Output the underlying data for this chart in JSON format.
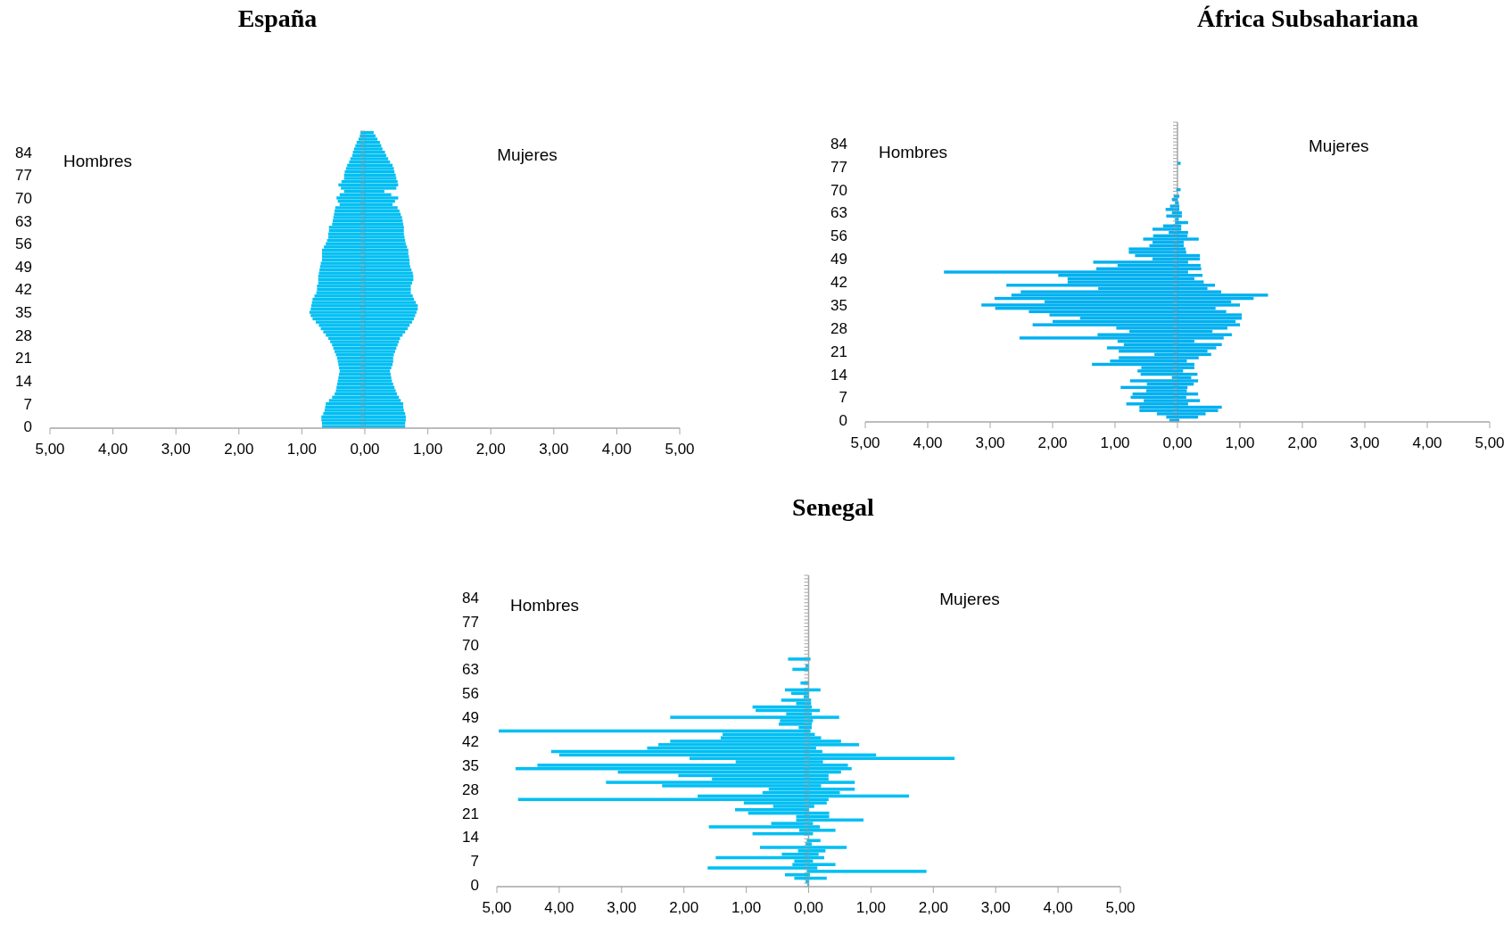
{
  "chart_data": [
    {
      "type": "bar",
      "orientation": "horizontal",
      "stacked": true,
      "title": "España",
      "annotations": [
        "Hombres",
        "Mujeres"
      ],
      "categories": [
        null,
        null,
        null,
        null,
        null,
        null,
        "84",
        null,
        null,
        null,
        null,
        null,
        null,
        "77",
        null,
        null,
        null,
        null,
        null,
        null,
        "70",
        null,
        null,
        null,
        null,
        null,
        null,
        "63",
        null,
        null,
        null,
        null,
        null,
        null,
        "56",
        null,
        null,
        null,
        null,
        null,
        null,
        "49",
        null,
        null,
        null,
        null,
        null,
        null,
        "42",
        null,
        null,
        null,
        null,
        null,
        null,
        "35",
        null,
        null,
        null,
        null,
        null,
        null,
        "28",
        null,
        null,
        null,
        null,
        null,
        null,
        "21",
        null,
        null,
        null,
        null,
        null,
        null,
        "14",
        null,
        null,
        null,
        null,
        null,
        null,
        "7",
        null,
        null,
        null,
        null,
        null,
        null,
        "0"
      ],
      "xlim": [
        -5,
        5
      ],
      "xticks": [
        {
          "value": -5,
          "label": "5,00"
        },
        {
          "value": -4,
          "label": "4,00"
        },
        {
          "value": -3,
          "label": "3,00"
        },
        {
          "value": -2,
          "label": "2,00"
        },
        {
          "value": -1,
          "label": "1,00"
        },
        {
          "value": 0,
          "label": "0,00"
        },
        {
          "value": 1,
          "label": "1,00"
        },
        {
          "value": 2,
          "label": "2,00"
        },
        {
          "value": 3,
          "label": "3,00"
        },
        {
          "value": 4,
          "label": "4,00"
        },
        {
          "value": 5,
          "label": "5,00"
        }
      ],
      "series": [
        {
          "color": "#00bff3",
          "values": [
            -0.07,
            -0.08,
            -0.1,
            -0.13,
            -0.15,
            -0.17,
            -0.19,
            -0.2,
            -0.23,
            -0.25,
            -0.28,
            -0.3,
            -0.32,
            -0.33,
            -0.33,
            -0.37,
            -0.42,
            -0.38,
            -0.33,
            -0.4,
            -0.45,
            -0.43,
            -0.4,
            -0.47,
            -0.48,
            -0.49,
            -0.5,
            -0.51,
            -0.52,
            -0.57,
            -0.57,
            -0.58,
            -0.58,
            -0.6,
            -0.62,
            -0.65,
            -0.68,
            -0.68,
            -0.68,
            -0.68,
            -0.7,
            -0.71,
            -0.72,
            -0.73,
            -0.74,
            -0.74,
            -0.74,
            -0.76,
            -0.76,
            -0.77,
            -0.8,
            -0.83,
            -0.84,
            -0.85,
            -0.86,
            -0.88,
            -0.86,
            -0.83,
            -0.78,
            -0.73,
            -0.7,
            -0.66,
            -0.62,
            -0.58,
            -0.55,
            -0.52,
            -0.5,
            -0.48,
            -0.46,
            -0.44,
            -0.43,
            -0.42,
            -0.41,
            -0.4,
            -0.41,
            -0.42,
            -0.43,
            -0.44,
            -0.45,
            -0.46,
            -0.48,
            -0.52,
            -0.57,
            -0.62,
            -0.63,
            -0.64,
            -0.66,
            -0.69,
            -0.69,
            -0.68,
            -0.68
          ]
        },
        {
          "color": "#00bff3",
          "values": [
            0.14,
            0.17,
            0.2,
            0.24,
            0.26,
            0.28,
            0.32,
            0.34,
            0.37,
            0.4,
            0.44,
            0.46,
            0.47,
            0.49,
            0.5,
            0.52,
            0.53,
            0.5,
            0.31,
            0.42,
            0.53,
            0.48,
            0.44,
            0.52,
            0.55,
            0.57,
            0.59,
            0.6,
            0.61,
            0.62,
            0.62,
            0.62,
            0.63,
            0.64,
            0.65,
            0.67,
            0.69,
            0.69,
            0.7,
            0.71,
            0.71,
            0.72,
            0.74,
            0.76,
            0.77,
            0.77,
            0.75,
            0.73,
            0.73,
            0.73,
            0.76,
            0.78,
            0.81,
            0.84,
            0.84,
            0.82,
            0.8,
            0.78,
            0.75,
            0.71,
            0.68,
            0.64,
            0.6,
            0.56,
            0.54,
            0.52,
            0.5,
            0.48,
            0.46,
            0.45,
            0.45,
            0.44,
            0.42,
            0.4,
            0.41,
            0.42,
            0.43,
            0.45,
            0.47,
            0.49,
            0.51,
            0.54,
            0.57,
            0.61,
            0.61,
            0.62,
            0.64,
            0.65,
            0.65,
            0.64,
            0.64
          ]
        }
      ]
    },
    {
      "type": "bar",
      "orientation": "horizontal",
      "stacked": true,
      "title": "África Subsahariana",
      "annotations": [
        "Hombres",
        "Mujeres"
      ],
      "categories": [
        null,
        null,
        null,
        null,
        null,
        null,
        "84",
        null,
        null,
        null,
        null,
        null,
        null,
        "77",
        null,
        null,
        null,
        null,
        null,
        null,
        "70",
        null,
        null,
        null,
        null,
        null,
        null,
        "63",
        null,
        null,
        null,
        null,
        null,
        null,
        "56",
        null,
        null,
        null,
        null,
        null,
        null,
        "49",
        null,
        null,
        null,
        null,
        null,
        null,
        "42",
        null,
        null,
        null,
        null,
        null,
        null,
        "35",
        null,
        null,
        null,
        null,
        null,
        null,
        "28",
        null,
        null,
        null,
        null,
        null,
        null,
        "21",
        null,
        null,
        null,
        null,
        null,
        null,
        "14",
        null,
        null,
        null,
        null,
        null,
        null,
        "7",
        null,
        null,
        null,
        null,
        null,
        null,
        "0"
      ],
      "xlim": [
        -5,
        5
      ],
      "xticks": [
        {
          "value": -5,
          "label": "5,00"
        },
        {
          "value": -4,
          "label": "4,00"
        },
        {
          "value": -3,
          "label": "3,00"
        },
        {
          "value": -2,
          "label": "2,00"
        },
        {
          "value": -1,
          "label": "1,00"
        },
        {
          "value": 0,
          "label": "0,00"
        },
        {
          "value": 1,
          "label": "1,00"
        },
        {
          "value": 2,
          "label": "2,00"
        },
        {
          "value": 3,
          "label": "3,00"
        },
        {
          "value": 4,
          "label": "4,00"
        },
        {
          "value": 5,
          "label": "5,00"
        }
      ],
      "series": [
        {
          "color": "#00b0f0",
          "values": [
            0,
            0,
            0,
            0,
            0,
            0,
            null,
            0,
            0,
            0,
            0,
            0,
            0,
            0,
            0,
            0,
            0,
            0,
            0,
            null,
            -0.02,
            0,
            -0.06,
            -0.09,
            -0.04,
            -0.12,
            -0.19,
            -0.09,
            -0.18,
            -0.04,
            -0.04,
            -0.23,
            -0.4,
            -0.14,
            -0.39,
            -0.55,
            -0.4,
            -0.45,
            -0.78,
            -0.78,
            -0.68,
            -0.4,
            -1.35,
            -0.96,
            -1.3,
            -3.74,
            -1.91,
            -1.76,
            -1.76,
            -2.74,
            -1.27,
            -2.51,
            -2.66,
            -2.93,
            -2.13,
            -3.14,
            -2.92,
            -2.38,
            -2.05,
            -1.56,
            -2,
            -2.32,
            -0.98,
            -0.77,
            -1.28,
            -2.53,
            -0.96,
            -0.86,
            -1.13,
            -0.94,
            -0.37,
            -0.94,
            -1.08,
            -1.37,
            -0.58,
            -0.64,
            -0.59,
            -0.09,
            -0.76,
            -0.49,
            -0.91,
            -0.5,
            -0.72,
            -0.75,
            -0.54,
            -0.82,
            -0.61,
            -0.61,
            -0.33,
            -0.18,
            -0.13
          ]
        },
        {
          "color": "#00b0f0",
          "values": [
            0,
            0,
            0,
            0,
            0,
            0,
            0,
            0,
            0,
            0,
            0,
            0,
            0.05,
            0,
            0,
            0,
            0,
            0,
            0,
            0,
            0.05,
            0,
            0.03,
            0,
            0.02,
            0.03,
            0.03,
            0.07,
            0.07,
            0.02,
            0.17,
            0.06,
            0.06,
            0.17,
            0.16,
            0.34,
            0.1,
            0.1,
            0.13,
            0.14,
            0.36,
            0.36,
            0.17,
            0.37,
            0.38,
            0.17,
            0.4,
            0.27,
            0.42,
            0.6,
            0.48,
            0.7,
            1.45,
            1.22,
            0.86,
            1,
            0.61,
            0.78,
            1.03,
            1.03,
            0.93,
            1,
            0.8,
            0.56,
            0.87,
            0.74,
            0.27,
            0.71,
            0.62,
            0.48,
            0.54,
            0.34,
            0.15,
            0.27,
            0.27,
            0.09,
            0.32,
            0.22,
            0.33,
            0.26,
            0.16,
            0.15,
            0.33,
            0.14,
            0.36,
            0.17,
            0.71,
            0.65,
            0.45,
            0.33,
            0.03
          ]
        }
      ]
    },
    {
      "type": "bar",
      "orientation": "horizontal",
      "stacked": true,
      "title": "Senegal",
      "annotations": [
        "Hombres",
        "Mujeres"
      ],
      "categories": [
        null,
        null,
        null,
        null,
        null,
        null,
        "84",
        null,
        null,
        null,
        null,
        null,
        null,
        "77",
        null,
        null,
        null,
        null,
        null,
        null,
        "70",
        null,
        null,
        null,
        null,
        null,
        null,
        "63",
        null,
        null,
        null,
        null,
        null,
        null,
        "56",
        null,
        null,
        null,
        null,
        null,
        null,
        "49",
        null,
        null,
        null,
        null,
        null,
        null,
        "42",
        null,
        null,
        null,
        null,
        null,
        null,
        "35",
        null,
        null,
        null,
        null,
        null,
        null,
        "28",
        null,
        null,
        null,
        null,
        null,
        null,
        "21",
        null,
        null,
        null,
        null,
        null,
        null,
        "14",
        null,
        null,
        null,
        null,
        null,
        null,
        "7",
        null,
        null,
        null,
        null,
        null,
        null,
        "0"
      ],
      "xlim": [
        -5,
        5
      ],
      "xticks": [
        {
          "value": -5,
          "label": "5,00"
        },
        {
          "value": -4,
          "label": "4,00"
        },
        {
          "value": -3,
          "label": "3,00"
        },
        {
          "value": -2,
          "label": "2,00"
        },
        {
          "value": -1,
          "label": "1,00"
        },
        {
          "value": 0,
          "label": "0,00"
        },
        {
          "value": 1,
          "label": "1,00"
        },
        {
          "value": 2,
          "label": "2,00"
        },
        {
          "value": 3,
          "label": "3,00"
        },
        {
          "value": 4,
          "label": "4,00"
        },
        {
          "value": 5,
          "label": "5,00"
        }
      ],
      "series": [
        {
          "color": "#00bff3",
          "values": [
            0,
            0,
            0,
            0,
            0,
            0,
            0,
            0,
            0,
            0,
            0,
            0,
            0,
            0,
            0,
            0,
            0,
            0,
            0,
            0,
            0,
            0,
            0,
            0,
            -0.33,
            0,
            -0.05,
            -0.26,
            0,
            0,
            0,
            -0.13,
            0,
            -0.38,
            -0.28,
            -0.08,
            -0.44,
            -0.2,
            -0.9,
            -0.85,
            -0.36,
            -2.22,
            -0.46,
            -0.48,
            -0.16,
            -4.97,
            -1.38,
            -1.41,
            -2.22,
            -2.41,
            -2.59,
            -4.13,
            -4,
            -1.91,
            -1.17,
            -4.35,
            -4.7,
            -3.06,
            -2.09,
            -1.55,
            -3.25,
            -2.35,
            -0.64,
            -0.74,
            -1.78,
            -4.66,
            -1.04,
            -0.57,
            -1.18,
            -0.97,
            -0.2,
            -0.2,
            -0.6,
            -1.6,
            -0.15,
            -0.9,
            0,
            -0.03,
            -0.05,
            -0.78,
            -0.17,
            -0.43,
            -1.49,
            -0.23,
            -0.26,
            -1.62,
            -0.03,
            -0.38,
            -0.23,
            -0.05,
            -0.02
          ]
        },
        {
          "color": "#00bff3",
          "values": [
            0,
            0,
            0,
            0,
            0,
            0,
            0,
            0,
            0,
            0,
            0,
            0,
            0,
            0,
            0,
            0,
            0,
            0,
            0,
            0,
            0,
            0,
            0,
            0,
            0.03,
            0,
            0,
            0,
            0,
            0,
            0,
            0,
            0,
            0.19,
            0,
            0,
            0.04,
            0.04,
            0.05,
            0.18,
            0.05,
            0.49,
            0.07,
            0.05,
            0.05,
            0.03,
            0.1,
            0.2,
            0.52,
            0.81,
            0.12,
            0.22,
            1.08,
            2.34,
            0.23,
            0.63,
            0.69,
            0.52,
            0.32,
            0.32,
            0.74,
            0.2,
            0.74,
            0.5,
            1.61,
            0.32,
            0.29,
            0.09,
            0,
            0.33,
            0.33,
            0.88,
            0.07,
            0.18,
            0.43,
            0.07,
            0,
            0.19,
            0.05,
            0.61,
            0.27,
            0.16,
            0.25,
            0.07,
            0.43,
            0.14,
            1.89,
            0.02,
            0.29,
            0,
            0
          ]
        }
      ]
    }
  ]
}
